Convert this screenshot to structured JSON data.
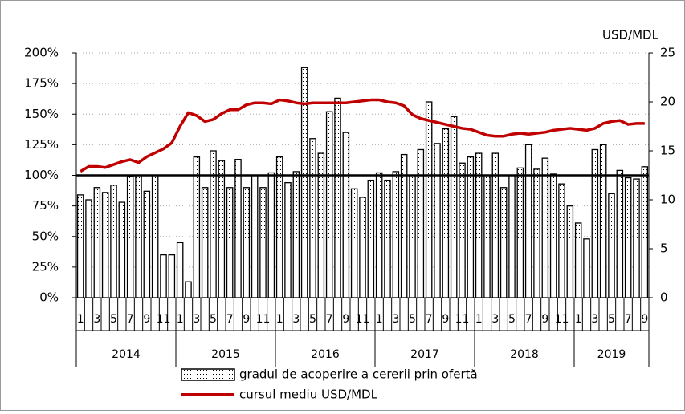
{
  "chart_data": {
    "type": "bar_line",
    "categories": [
      "1",
      null,
      "3",
      null,
      "5",
      null,
      "7",
      null,
      "9",
      null,
      "11",
      null,
      "1",
      null,
      "3",
      null,
      "5",
      null,
      "7",
      null,
      "9",
      null,
      "11",
      null,
      "1",
      null,
      "3",
      null,
      "5",
      null,
      "7",
      null,
      "9",
      null,
      "11",
      null,
      "1",
      null,
      "3",
      null,
      "5",
      null,
      "7",
      null,
      "9",
      null,
      "11",
      null,
      "1",
      null,
      "3",
      null,
      "5",
      null,
      "7",
      null,
      "9",
      null,
      "11",
      null,
      "1",
      null,
      "3",
      null,
      "5",
      null,
      "7",
      null,
      "9"
    ],
    "x_groups": [
      "2014",
      "2015",
      "2016",
      "2017",
      "2018",
      "2019"
    ],
    "series": [
      {
        "name": "gradul de acoperire a cererii prin ofertă",
        "type": "bar",
        "color": "#000000",
        "axis": "y",
        "values": [
          84,
          80,
          90,
          86,
          92,
          78,
          99,
          100,
          87,
          100,
          35,
          35,
          45,
          13,
          115,
          90,
          120,
          112,
          90,
          113,
          90,
          100,
          90,
          102,
          115,
          94,
          103,
          188,
          130,
          118,
          152,
          163,
          135,
          89,
          82,
          96,
          102,
          96,
          103,
          117,
          100,
          121,
          160,
          126,
          138,
          148,
          110,
          115,
          118,
          100,
          118,
          90,
          100,
          106,
          125,
          105,
          114,
          101,
          93,
          75,
          61,
          48,
          121,
          125,
          85,
          104,
          98,
          97,
          107
        ]
      },
      {
        "name": "cursul mediu USD/MDL",
        "type": "line",
        "color": "#c00000",
        "axis": "y2",
        "values": [
          12.9,
          13.4,
          13.4,
          13.3,
          13.6,
          13.9,
          14.1,
          13.8,
          14.4,
          14.8,
          15.2,
          15.8,
          17.5,
          18.9,
          18.6,
          18.0,
          18.2,
          18.8,
          19.2,
          19.2,
          19.7,
          19.9,
          19.9,
          19.8,
          20.2,
          20.1,
          19.9,
          19.8,
          19.9,
          19.9,
          19.9,
          19.9,
          19.9,
          20.0,
          20.1,
          20.2,
          20.2,
          20.0,
          19.9,
          19.6,
          18.7,
          18.3,
          18.1,
          17.9,
          17.7,
          17.5,
          17.3,
          17.2,
          16.9,
          16.6,
          16.5,
          16.5,
          16.7,
          16.8,
          16.7,
          16.8,
          16.9,
          17.1,
          17.2,
          17.3,
          17.2,
          17.1,
          17.3,
          17.8,
          18.0,
          18.1,
          17.7,
          17.8,
          17.8
        ]
      }
    ],
    "ylim": [
      0,
      200
    ],
    "yticks": [
      {
        "value": 0,
        "label": "0%"
      },
      {
        "value": 25,
        "label": "25%"
      },
      {
        "value": 50,
        "label": "50%"
      },
      {
        "value": 75,
        "label": "75%"
      },
      {
        "value": 100,
        "label": "100%"
      },
      {
        "value": 125,
        "label": "125%"
      },
      {
        "value": 150,
        "label": "150%"
      },
      {
        "value": 175,
        "label": "175%"
      },
      {
        "value": 200,
        "label": "200%"
      }
    ],
    "y2label": "USD/MDL",
    "y2lim": [
      0,
      25
    ],
    "y2ticks": [
      0,
      5,
      10,
      15,
      20,
      25
    ],
    "reference_line": 100,
    "grid": true
  }
}
